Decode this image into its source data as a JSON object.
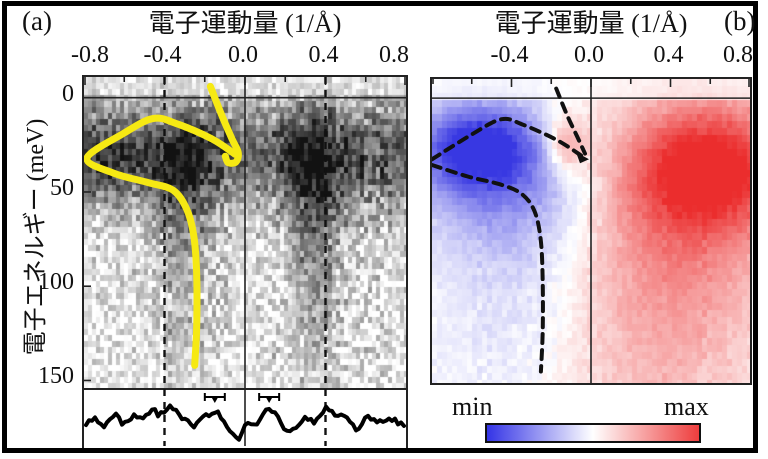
{
  "panel_a": {
    "corner_label": "(a)",
    "title": "電子運動量 (1/Å)",
    "x_ticks": [
      {
        "label": "-0.8",
        "k": -0.8
      },
      {
        "label": "-0.4",
        "k": -0.4
      },
      {
        "label": "0.0",
        "k": 0.0
      },
      {
        "label": "0.4",
        "k": 0.4
      },
      {
        "label": "0.8",
        "k": 0.8
      }
    ],
    "y_label": "電子エネルギー (meV)",
    "y_ticks": [
      {
        "label": "0",
        "E": 0
      },
      {
        "label": "50",
        "E": 50
      },
      {
        "label": "100",
        "E": 100
      },
      {
        "label": "150",
        "E": 150
      }
    ]
  },
  "panel_b": {
    "corner_label": "(b)",
    "title": "電子運動量 (1/Å)",
    "x_ticks": [
      {
        "label": "-0.4",
        "k": -0.4
      },
      {
        "label": "0.0",
        "k": 0.0
      },
      {
        "label": "0.4",
        "k": 0.4
      },
      {
        "label": "0.8",
        "k": 0.8
      }
    ]
  },
  "colorbar": {
    "min_label": "min",
    "max_label": "max",
    "gradient": [
      "#3434e6",
      "#ffffff",
      "#ee3d3d"
    ]
  },
  "chart_data": [
    {
      "id": "panel_a",
      "type": "heatmap",
      "colormap": "grayscale",
      "xlabel": "電子運動量 (1/Å)",
      "ylabel": "電子エネルギー (meV)",
      "x_range": [
        -0.8,
        0.8
      ],
      "y_range_meV": [
        -11,
        154
      ],
      "x_tick_values": [
        -0.8,
        -0.4,
        0.0,
        0.4,
        0.8
      ],
      "minor_tick_step": 0.2,
      "y_tick_values": [
        0,
        50,
        100,
        150
      ],
      "fermi_line_E": 0,
      "vlines_dashed_k": [
        -0.4,
        0.4
      ],
      "vline_solid_k": 0,
      "seed": 7,
      "base": 0.1,
      "noise": 0.22,
      "block": [
        4,
        6
      ],
      "top_fade": 0.55,
      "bottom_fade": 0.85,
      "features_gaussian_kE": [
        {
          "k": 0.0,
          "E": 30,
          "sk": 2.0,
          "sE": 19,
          "amp": 0.48
        },
        {
          "k": -0.3,
          "E": 42,
          "sk": 0.12,
          "sE": 28,
          "amp": 0.3
        },
        {
          "k": -0.3,
          "E": 90,
          "sk": 0.1,
          "sE": 48,
          "amp": 0.2
        },
        {
          "k": 0.33,
          "E": 45,
          "sk": 0.11,
          "sE": 30,
          "amp": 0.33
        },
        {
          "k": 0.35,
          "E": 100,
          "sk": 0.09,
          "sE": 50,
          "amp": 0.24
        },
        {
          "k": -0.75,
          "E": 33,
          "sk": 0.18,
          "sE": 16,
          "amp": 0.28
        },
        {
          "k": 0.72,
          "E": 40,
          "sk": 0.22,
          "sE": 30,
          "amp": 0.12
        }
      ],
      "guide_curve": {
        "color": "#f6e913",
        "width": 7,
        "strokes": [
          [
            [
              -0.172,
              -6
            ],
            [
              -0.113,
              10
            ],
            [
              -0.064,
              22
            ],
            [
              -0.034,
              29
            ],
            [
              -0.044,
              34
            ],
            [
              -0.083,
              34.5
            ],
            [
              -0.098,
              31
            ]
          ],
          [
            [
              -0.049,
              30
            ],
            [
              -0.162,
              22
            ],
            [
              -0.334,
              14
            ],
            [
              -0.456,
              11
            ],
            [
              -0.604,
              19
            ],
            [
              -0.785,
              32
            ],
            [
              -0.653,
              40
            ],
            [
              -0.481,
              45
            ],
            [
              -0.358,
              49
            ],
            [
              -0.29,
              59
            ],
            [
              -0.255,
              73
            ],
            [
              -0.24,
              94
            ],
            [
              -0.24,
              121
            ],
            [
              -0.25,
              142
            ]
          ]
        ]
      },
      "mdc_profile": {
        "description": "momentum distribution curve shown in sub-panel below the image",
        "points_k_h": [
          [
            -0.8,
            0.38
          ],
          [
            -0.74,
            0.5
          ],
          [
            -0.7,
            0.33
          ],
          [
            -0.645,
            0.6
          ],
          [
            -0.61,
            0.4
          ],
          [
            -0.55,
            0.58
          ],
          [
            -0.515,
            0.5
          ],
          [
            -0.46,
            0.7
          ],
          [
            -0.43,
            0.58
          ],
          [
            -0.37,
            0.77
          ],
          [
            -0.3,
            0.46
          ],
          [
            -0.255,
            0.36
          ],
          [
            -0.2,
            0.62
          ],
          [
            -0.17,
            0.54
          ],
          [
            -0.135,
            0.66
          ],
          [
            -0.08,
            0.27
          ],
          [
            -0.03,
            0.12
          ],
          [
            0.01,
            0.45
          ],
          [
            0.05,
            0.38
          ],
          [
            0.115,
            0.77
          ],
          [
            0.16,
            0.53
          ],
          [
            0.21,
            0.24
          ],
          [
            0.25,
            0.3
          ],
          [
            0.3,
            0.54
          ],
          [
            0.34,
            0.44
          ],
          [
            0.4,
            0.71
          ],
          [
            0.45,
            0.58
          ],
          [
            0.5,
            0.62
          ],
          [
            0.555,
            0.29
          ],
          [
            0.61,
            0.58
          ],
          [
            0.66,
            0.43
          ],
          [
            0.73,
            0.5
          ],
          [
            0.8,
            0.33
          ]
        ],
        "error_bar_markers_k": [
          -0.15,
          0.12
        ]
      }
    },
    {
      "id": "panel_b",
      "type": "heatmap",
      "colormap": "diverging_blue_white_red",
      "xlabel": "電子運動量 (1/Å)",
      "x_range": [
        -0.8,
        0.8
      ],
      "y_range_meV": [
        -10,
        149
      ],
      "x_tick_values": [
        -0.4,
        0.0,
        0.4,
        0.8
      ],
      "minor_tick_step": 0.2,
      "fermi_line_E": 0,
      "vline_solid_k": 0,
      "seed": 13,
      "base": 0.0,
      "noise": 0.07,
      "block": [
        5,
        7
      ],
      "top_fade": 0.35,
      "bottom_fade": 1.0,
      "features_gaussian_kE": [
        {
          "k": -0.58,
          "E": 25,
          "sk": 0.22,
          "sE": 16,
          "amp": -0.9
        },
        {
          "k": -0.45,
          "E": 45,
          "sk": 0.3,
          "sE": 25,
          "amp": -0.45
        },
        {
          "k": -0.25,
          "E": 85,
          "sk": 0.3,
          "sE": 50,
          "amp": -0.18
        },
        {
          "k": -0.38,
          "E": 130,
          "sk": 0.35,
          "sE": 55,
          "amp": -0.1
        },
        {
          "k": -0.13,
          "E": 24,
          "sk": 0.07,
          "sE": 11,
          "amp": 0.55
        },
        {
          "k": 0.62,
          "E": 36,
          "sk": 0.3,
          "sE": 24,
          "amp": 0.85
        },
        {
          "k": 0.45,
          "E": 62,
          "sk": 0.35,
          "sE": 45,
          "amp": 0.35
        },
        {
          "k": 0.35,
          "E": 115,
          "sk": 0.45,
          "sE": 70,
          "amp": 0.22
        },
        {
          "k": 0.12,
          "E": 140,
          "sk": 0.4,
          "sE": 60,
          "amp": 0.12
        }
      ],
      "guide_curve": {
        "color": "#111111",
        "width": 4,
        "dash": [
          9,
          7
        ],
        "strokes": [
          [
            [
              -0.175,
              -5
            ],
            [
              -0.12,
              9
            ],
            [
              -0.07,
              20
            ],
            [
              -0.03,
              29
            ]
          ],
          [
            [
              -0.05,
              30
            ],
            [
              -0.17,
              22
            ],
            [
              -0.34,
              14
            ],
            [
              -0.45,
              11
            ],
            [
              -0.6,
              19
            ],
            [
              -0.8,
              32
            ]
          ],
          [
            [
              -0.8,
              35
            ],
            [
              -0.62,
              41
            ],
            [
              -0.46,
              45
            ],
            [
              -0.35,
              50
            ],
            [
              -0.285,
              59
            ],
            [
              -0.253,
              74
            ],
            [
              -0.243,
              96
            ],
            [
              -0.243,
              122
            ],
            [
              -0.252,
              143
            ]
          ]
        ],
        "arrow_end": {
          "k": -0.01,
          "E": 32
        }
      },
      "colorbar_labels": [
        "min",
        "max"
      ]
    }
  ]
}
